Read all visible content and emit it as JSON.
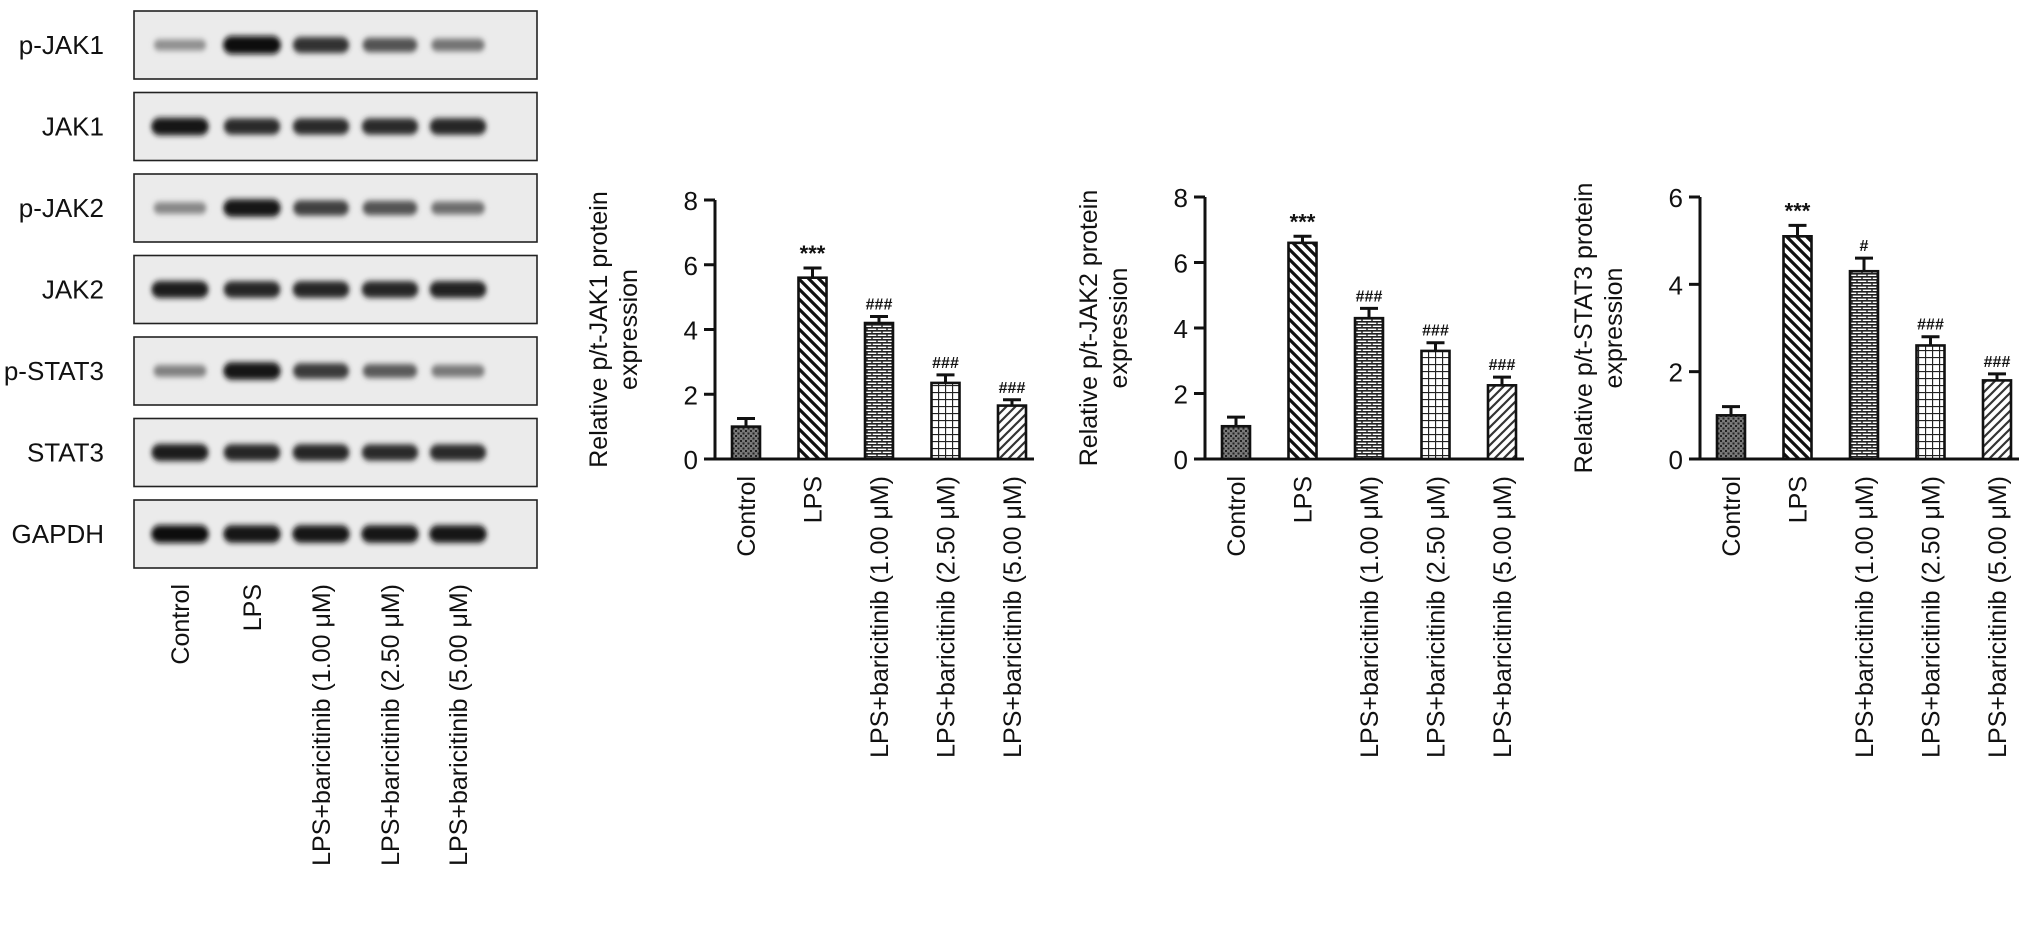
{
  "blot": {
    "rows": [
      "p-JAK1",
      "JAK1",
      "p-JAK2",
      "JAK2",
      "p-STAT3",
      "STAT3",
      "GAPDH"
    ],
    "lanes": [
      "Control",
      "LPS",
      "LPS+baricitinib (1.00 μM)",
      "LPS+baricitinib (2.50 μM)",
      "LPS+baricitinib (5.00 μM)"
    ],
    "intensities": [
      [
        0.3,
        1.0,
        0.8,
        0.62,
        0.45
      ],
      [
        0.95,
        0.82,
        0.82,
        0.82,
        0.85
      ],
      [
        0.35,
        0.95,
        0.72,
        0.62,
        0.48
      ],
      [
        0.9,
        0.85,
        0.85,
        0.85,
        0.88
      ],
      [
        0.38,
        0.95,
        0.75,
        0.58,
        0.42
      ],
      [
        0.9,
        0.85,
        0.85,
        0.82,
        0.82
      ],
      [
        0.98,
        0.95,
        0.95,
        0.95,
        0.95
      ]
    ]
  },
  "chart_data": [
    {
      "type": "bar",
      "categories": [
        "Control",
        "LPS",
        "LPS+baricitinib (1.00 μM)",
        "LPS+baricitinib (2.50 μM)",
        "LPS+baricitinib (5.00 μM)"
      ],
      "values": [
        1.0,
        5.6,
        4.2,
        2.35,
        1.65
      ],
      "errors": [
        0.25,
        0.3,
        0.2,
        0.25,
        0.18
      ],
      "annotations": [
        "",
        "***",
        "###",
        "###",
        "###"
      ],
      "patterns": [
        "dots",
        "diag-back",
        "bricks",
        "grid",
        "diag-fwd"
      ],
      "ylabel_lines": [
        "Relative p/t-JAK1 protein",
        "expression"
      ],
      "ylim": [
        0,
        8
      ],
      "yticks": [
        0,
        2,
        4,
        6,
        8
      ]
    },
    {
      "type": "bar",
      "categories": [
        "Control",
        "LPS",
        "LPS+baricitinib (1.00 μM)",
        "LPS+baricitinib (2.50 μM)",
        "LPS+baricitinib (5.00 μM)"
      ],
      "values": [
        1.0,
        6.6,
        4.3,
        3.3,
        2.25
      ],
      "errors": [
        0.28,
        0.2,
        0.3,
        0.25,
        0.25
      ],
      "annotations": [
        "",
        "***",
        "###",
        "###",
        "###"
      ],
      "patterns": [
        "dots",
        "diag-back",
        "bricks",
        "grid",
        "diag-fwd"
      ],
      "ylabel_lines": [
        "Relative p/t-JAK2 protein",
        "expression"
      ],
      "ylim": [
        0,
        8
      ],
      "yticks": [
        0,
        2,
        4,
        6,
        8
      ]
    },
    {
      "type": "bar",
      "categories": [
        "Control",
        "LPS",
        "LPS+baricitinib (1.00 μM)",
        "LPS+baricitinib (2.50 μM)",
        "LPS+baricitinib (5.00 μM)"
      ],
      "values": [
        1.0,
        5.1,
        4.3,
        2.6,
        1.8
      ],
      "errors": [
        0.2,
        0.25,
        0.3,
        0.2,
        0.15
      ],
      "annotations": [
        "",
        "***",
        "#",
        "###",
        "###"
      ],
      "patterns": [
        "dots",
        "diag-back",
        "bricks",
        "grid",
        "diag-fwd"
      ],
      "ylabel_lines": [
        "Relative p/t-STAT3 protein",
        "expression"
      ],
      "ylim": [
        0,
        6
      ],
      "yticks": [
        0,
        2,
        4,
        6
      ]
    }
  ]
}
